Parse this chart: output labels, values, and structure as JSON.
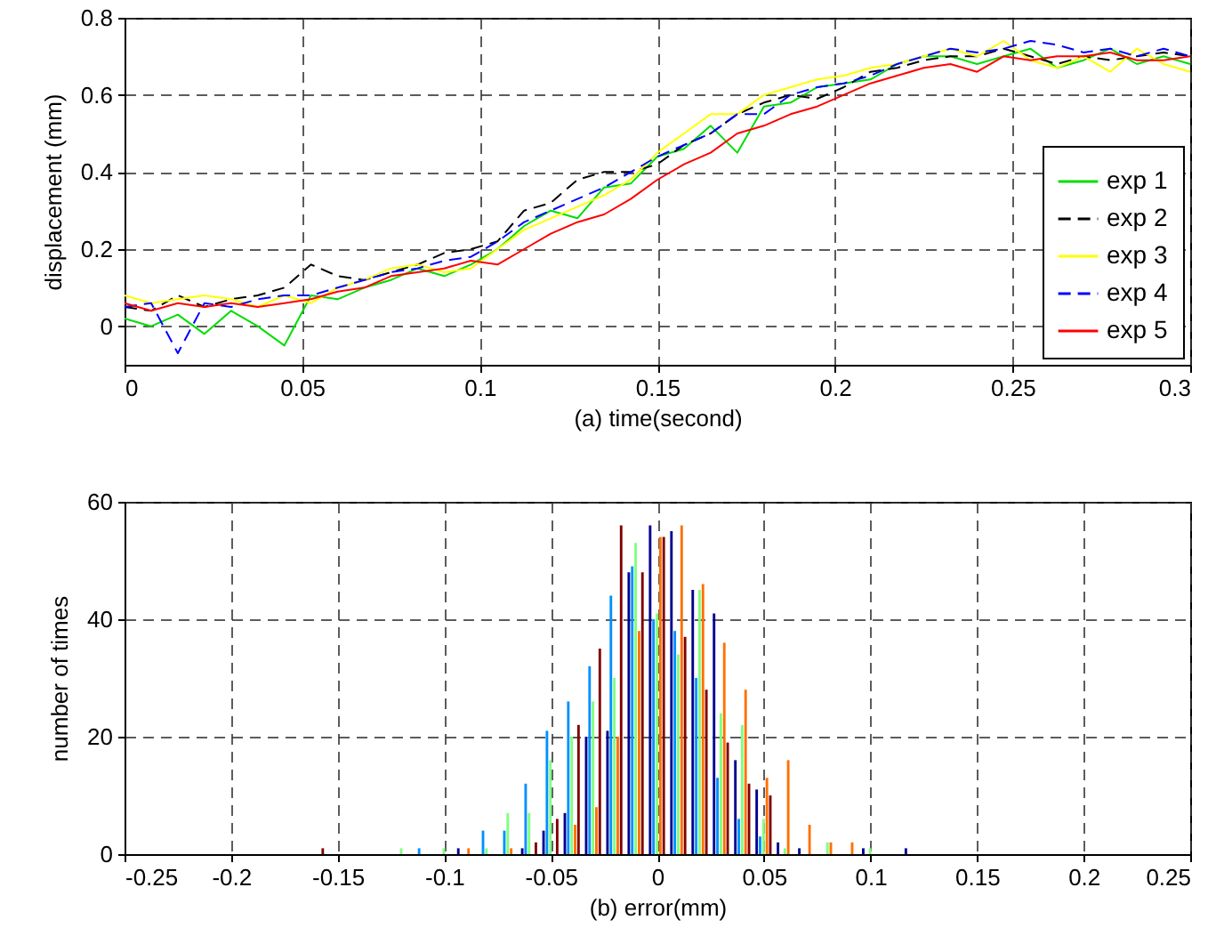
{
  "chart_data": [
    {
      "type": "line",
      "xlabel": "(a)  time(second)",
      "ylabel": "displacement (mm)",
      "xlim": [
        0,
        0.3
      ],
      "xticks": [
        0,
        0.05,
        0.1,
        0.15,
        0.2,
        0.25,
        0.3
      ],
      "ylim": [
        -0.1,
        0.8
      ],
      "yticks": [
        0,
        0.2,
        0.4,
        0.6,
        0.8
      ],
      "grid": true,
      "legend": "bottom right",
      "x": [
        0,
        0.0075,
        0.015,
        0.0225,
        0.03,
        0.0375,
        0.045,
        0.0525,
        0.06,
        0.0675,
        0.075,
        0.0825,
        0.09,
        0.0975,
        0.105,
        0.1125,
        0.12,
        0.1275,
        0.135,
        0.1425,
        0.15,
        0.1575,
        0.165,
        0.1725,
        0.18,
        0.1875,
        0.195,
        0.2025,
        0.21,
        0.2175,
        0.225,
        0.2325,
        0.24,
        0.2475,
        0.255,
        0.2625,
        0.27,
        0.2775,
        0.285,
        0.2925,
        0.3
      ],
      "series": [
        {
          "name": "exp 1",
          "color": "#00dd00",
          "line_style": "solid",
          "values": [
            0.02,
            0.0,
            0.03,
            -0.02,
            0.04,
            0.0,
            -0.05,
            0.08,
            0.07,
            0.1,
            0.12,
            0.15,
            0.13,
            0.16,
            0.2,
            0.26,
            0.3,
            0.28,
            0.36,
            0.37,
            0.44,
            0.46,
            0.52,
            0.45,
            0.57,
            0.58,
            0.62,
            0.63,
            0.64,
            0.68,
            0.7,
            0.7,
            0.68,
            0.7,
            0.72,
            0.67,
            0.69,
            0.72,
            0.68,
            0.7,
            0.68
          ]
        },
        {
          "name": "exp 2",
          "color": "#000000",
          "line_style": "dashed",
          "values": [
            0.05,
            0.04,
            0.08,
            0.05,
            0.07,
            0.08,
            0.1,
            0.16,
            0.13,
            0.12,
            0.14,
            0.16,
            0.19,
            0.2,
            0.22,
            0.3,
            0.32,
            0.38,
            0.4,
            0.4,
            0.42,
            0.47,
            0.5,
            0.55,
            0.58,
            0.6,
            0.59,
            0.62,
            0.66,
            0.67,
            0.69,
            0.7,
            0.7,
            0.72,
            0.7,
            0.68,
            0.7,
            0.69,
            0.7,
            0.71,
            0.7
          ]
        },
        {
          "name": "exp 3",
          "color": "#ffff00",
          "line_style": "solid",
          "values": [
            0.08,
            0.06,
            0.07,
            0.08,
            0.07,
            0.05,
            0.08,
            0.06,
            0.1,
            0.12,
            0.15,
            0.16,
            0.14,
            0.15,
            0.2,
            0.25,
            0.28,
            0.31,
            0.34,
            0.38,
            0.45,
            0.5,
            0.55,
            0.55,
            0.6,
            0.62,
            0.64,
            0.65,
            0.67,
            0.68,
            0.7,
            0.72,
            0.7,
            0.74,
            0.69,
            0.67,
            0.7,
            0.66,
            0.72,
            0.68,
            0.66
          ]
        },
        {
          "name": "exp 4",
          "color": "#0000ff",
          "line_style": "dashed",
          "values": [
            0.05,
            0.06,
            -0.07,
            0.06,
            0.05,
            0.07,
            0.08,
            0.08,
            0.1,
            0.12,
            0.14,
            0.15,
            0.17,
            0.18,
            0.22,
            0.27,
            0.3,
            0.33,
            0.36,
            0.4,
            0.44,
            0.47,
            0.5,
            0.55,
            0.55,
            0.6,
            0.62,
            0.63,
            0.65,
            0.68,
            0.7,
            0.72,
            0.71,
            0.72,
            0.74,
            0.73,
            0.71,
            0.72,
            0.7,
            0.72,
            0.7
          ]
        },
        {
          "name": "exp 5",
          "color": "#ff0000",
          "line_style": "solid",
          "values": [
            0.06,
            0.04,
            0.06,
            0.05,
            0.06,
            0.05,
            0.06,
            0.07,
            0.09,
            0.1,
            0.13,
            0.14,
            0.15,
            0.17,
            0.16,
            0.2,
            0.24,
            0.27,
            0.29,
            0.33,
            0.38,
            0.42,
            0.45,
            0.5,
            0.52,
            0.55,
            0.57,
            0.6,
            0.63,
            0.65,
            0.67,
            0.68,
            0.66,
            0.7,
            0.69,
            0.7,
            0.7,
            0.71,
            0.69,
            0.69,
            0.7
          ]
        }
      ]
    },
    {
      "type": "histogram",
      "xlabel": "(b)  error(mm)",
      "ylabel": "number of times",
      "xlim": [
        -0.25,
        0.25
      ],
      "xticks": [
        -0.25,
        -0.2,
        -0.15,
        -0.1,
        -0.05,
        0,
        0.05,
        0.1,
        0.15,
        0.2,
        0.25
      ],
      "ylim": [
        0,
        60
      ],
      "yticks": [
        0,
        20,
        40,
        60
      ],
      "grid": true,
      "bins": [
        -0.205,
        -0.195,
        -0.185,
        -0.175,
        -0.165,
        -0.155,
        -0.145,
        -0.135,
        -0.125,
        -0.115,
        -0.105,
        -0.095,
        -0.085,
        -0.075,
        -0.065,
        -0.055,
        -0.045,
        -0.035,
        -0.025,
        -0.015,
        -0.005,
        0.005,
        0.015,
        0.025,
        0.035,
        0.045,
        0.055,
        0.065,
        0.075,
        0.085,
        0.095,
        0.105,
        0.115,
        0.125,
        0.135,
        0.145,
        0.155,
        0.165,
        0.175,
        0.185,
        0.195,
        0.205
      ],
      "series": [
        {
          "color": "#00008f",
          "values": [
            0,
            0,
            0,
            0,
            0,
            0,
            0,
            0,
            0,
            0,
            0,
            1,
            0,
            0,
            1,
            4,
            7,
            20,
            21,
            48,
            56,
            55,
            45,
            41,
            16,
            11,
            2,
            1,
            0,
            0,
            1,
            0,
            1,
            0,
            0,
            0,
            0,
            0,
            0,
            0,
            0
          ]
        },
        {
          "color": "#0090ff",
          "values": [
            0,
            0,
            0,
            0,
            0,
            0,
            0,
            0,
            0,
            1,
            0,
            0,
            4,
            4,
            12,
            21,
            26,
            32,
            44,
            49,
            40,
            38,
            30,
            13,
            6,
            3,
            0,
            0,
            0,
            0,
            0,
            0,
            0,
            0,
            0,
            0,
            0,
            0,
            0,
            0,
            0
          ]
        },
        {
          "color": "#80ff80",
          "values": [
            0,
            0,
            0,
            0,
            0,
            0,
            0,
            0,
            1,
            0,
            1,
            0,
            1,
            7,
            7,
            16,
            20,
            26,
            30,
            53,
            41,
            34,
            45,
            24,
            22,
            6,
            1,
            0,
            2,
            0,
            1,
            0,
            0,
            0,
            0,
            0,
            0,
            0,
            0,
            0,
            0
          ]
        },
        {
          "color": "#ff7000",
          "values": [
            0,
            0,
            0,
            0,
            0,
            0,
            0,
            0,
            0,
            0,
            0,
            1,
            0,
            1,
            0,
            0,
            5,
            8,
            20,
            38,
            54,
            56,
            46,
            36,
            28,
            13,
            16,
            5,
            2,
            2,
            0,
            0,
            0,
            0,
            0,
            0,
            0,
            0,
            0,
            0,
            0
          ]
        },
        {
          "color": "#800000",
          "values": [
            0,
            0,
            0,
            0,
            1,
            0,
            0,
            0,
            0,
            0,
            0,
            0,
            0,
            0,
            2,
            6,
            22,
            35,
            56,
            48,
            54,
            37,
            28,
            19,
            12,
            10,
            0,
            0,
            0,
            0,
            0,
            0,
            0,
            0,
            0,
            0,
            0,
            0,
            0,
            0,
            0
          ]
        }
      ]
    }
  ]
}
